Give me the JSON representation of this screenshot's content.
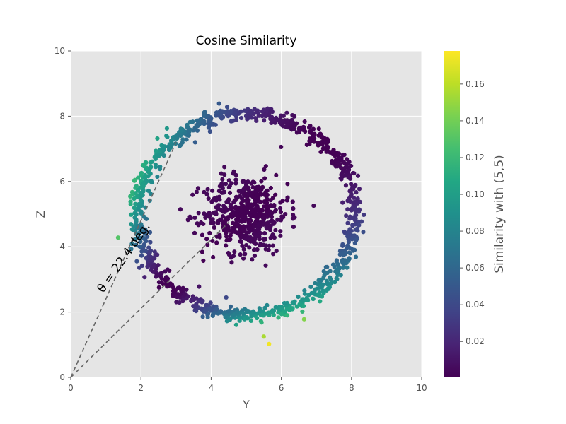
{
  "chart_data": {
    "type": "scatter",
    "title": "Cosine Similarity",
    "xlabel": "Y",
    "ylabel": "Z",
    "xlim": [
      0,
      10
    ],
    "ylim": [
      0,
      10
    ],
    "xticks": [
      "0",
      "2",
      "4",
      "6",
      "8",
      "10"
    ],
    "yticks": [
      "0",
      "2",
      "4",
      "6",
      "8",
      "10"
    ],
    "grid": true,
    "style": "ggplot",
    "colormap": "viridis",
    "colorbar": {
      "label": "Similarity with (5,5)",
      "range": [
        0.0005,
        0.178
      ],
      "ticks": [
        "0.02",
        "0.04",
        "0.06",
        "0.08",
        "0.10",
        "0.12",
        "0.14",
        "0.16"
      ],
      "tick_values": [
        0.02,
        0.04,
        0.06,
        0.08,
        0.1,
        0.12,
        0.14,
        0.16
      ]
    },
    "series": [
      {
        "name": "outer ring",
        "description": "approx. 1000 points on a ring centered at (5,5), radius ~3.1, noisy; color = cosine similarity of angle vs (5,5)",
        "center": [
          5,
          5
        ],
        "radius": 3.1,
        "count": 1000,
        "spread": 0.12
      },
      {
        "name": "inner cluster",
        "description": "approx. 500 points gaussian-distributed around (5,5), std ~0.6, similarity near 0",
        "center": [
          5,
          5
        ],
        "std": 0.6,
        "count": 500
      }
    ],
    "outliers": [
      {
        "x": 5.65,
        "y": 1.02,
        "similarity": 0.175
      },
      {
        "x": 5.5,
        "y": 1.25,
        "similarity": 0.155
      },
      {
        "x": 6.65,
        "y": 1.78,
        "similarity": 0.145
      },
      {
        "x": 1.35,
        "y": 4.28,
        "similarity": 0.13
      }
    ],
    "annotation": {
      "text": "θ = 22.4 deg.",
      "angle_deg": 22.4,
      "line1_end": [
        3.0,
        7.2
      ],
      "line2_end": [
        4.5,
        4.75
      ]
    },
    "colors": {
      "axes_bg": "#e5e5e5",
      "grid": "#ffffff",
      "dashed": "#666666"
    }
  }
}
